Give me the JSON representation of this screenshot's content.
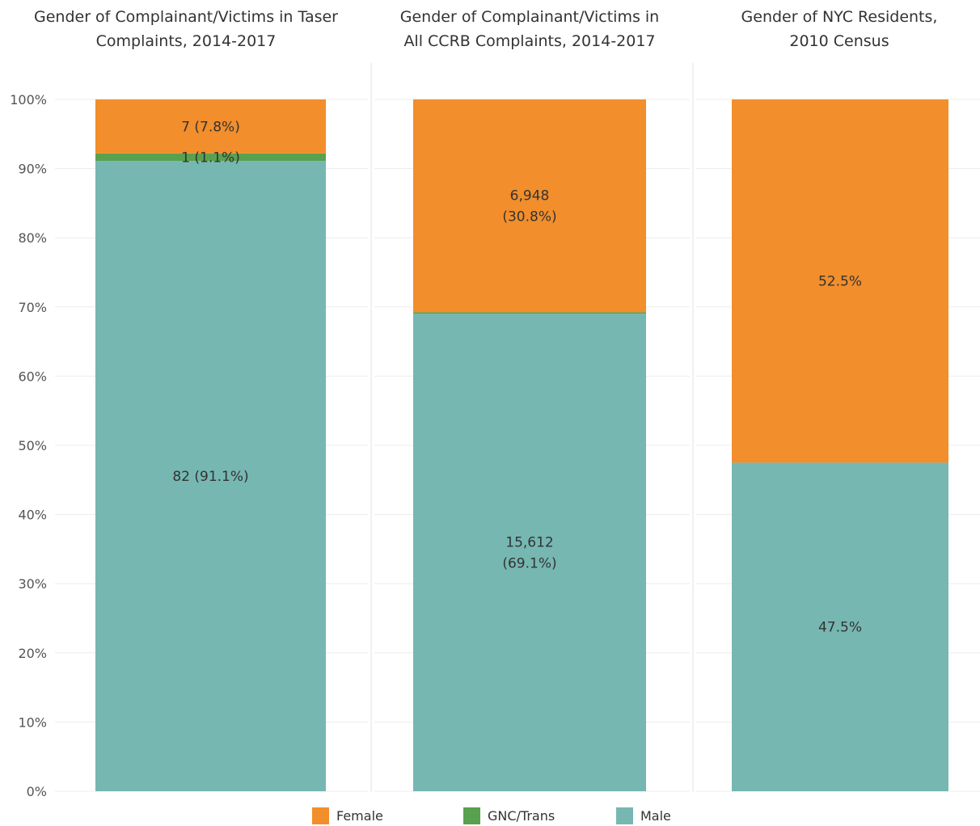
{
  "chart_data": {
    "type": "bar",
    "stacked": true,
    "normalized": true,
    "ylim": [
      0,
      100
    ],
    "yticks": [
      "0%",
      "10%",
      "20%",
      "30%",
      "40%",
      "50%",
      "60%",
      "70%",
      "80%",
      "90%",
      "100%"
    ],
    "grid": true,
    "legend_position": "bottom",
    "panels": [
      {
        "title_lines": [
          "Gender of Complainant/Victims in Taser",
          "Complaints, 2014-2017"
        ],
        "segments": [
          {
            "series": "Male",
            "percent": 91.1,
            "label_lines": [
              "82 (91.1%)"
            ]
          },
          {
            "series": "GNC/Trans",
            "percent": 1.1,
            "label_lines": [
              "1 (1.1%)"
            ]
          },
          {
            "series": "Female",
            "percent": 7.8,
            "label_lines": [
              "7 (7.8%)"
            ]
          }
        ]
      },
      {
        "title_lines": [
          "Gender of Complainant/Victims in",
          "All CCRB Complaints, 2014-2017"
        ],
        "segments": [
          {
            "series": "Male",
            "percent": 69.1,
            "label_lines": [
              "15,612",
              "(69.1%)"
            ]
          },
          {
            "series": "GNC/Trans",
            "percent": 0.2,
            "label_lines": []
          },
          {
            "series": "Female",
            "percent": 30.8,
            "label_lines": [
              "6,948",
              "(30.8%)"
            ]
          }
        ]
      },
      {
        "title_lines": [
          "Gender of NYC Residents,",
          "2010 Census"
        ],
        "segments": [
          {
            "series": "Male",
            "percent": 47.5,
            "label_lines": [
              "47.5%"
            ]
          },
          {
            "series": "Female",
            "percent": 52.5,
            "label_lines": [
              "52.5%"
            ]
          }
        ]
      }
    ],
    "legend": [
      {
        "name": "Female",
        "color": "#f28e2b"
      },
      {
        "name": "GNC/Trans",
        "color": "#59a14f"
      },
      {
        "name": "Male",
        "color": "#76b7b2"
      }
    ]
  }
}
